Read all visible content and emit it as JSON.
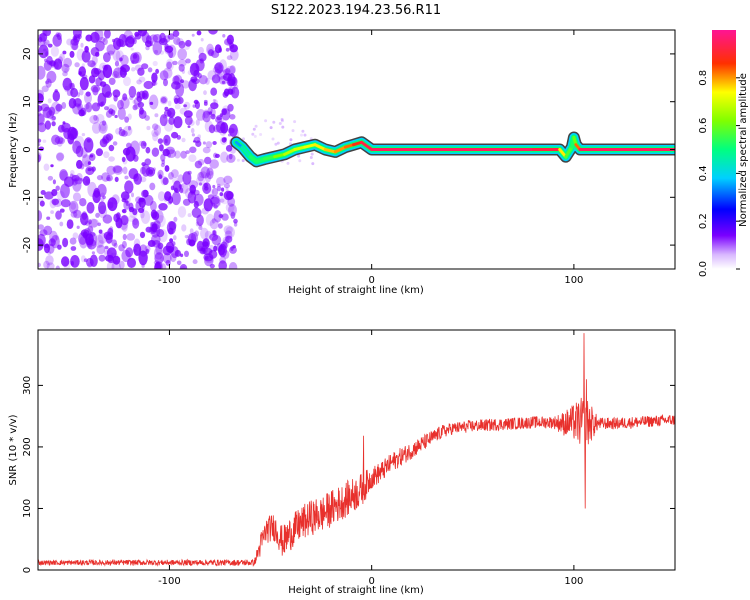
{
  "chart_data": [
    {
      "type": "heatmap",
      "title": "S122.2023.194.23.56.R11",
      "xlabel": "Height of straight line (km)",
      "ylabel": "Frequency (Hz)",
      "xlim": [
        -165,
        150
      ],
      "ylim": [
        -25,
        25
      ],
      "x_ticks": [
        -100,
        0,
        100
      ],
      "y_ticks": [
        -20,
        -10,
        0,
        10,
        20
      ],
      "colorbar": {
        "label": "Normalized spectral amplitude",
        "range": [
          0,
          1
        ],
        "ticks": [
          0.0,
          0.2,
          0.4,
          0.6,
          0.8
        ],
        "colormap": [
          "#ffffff",
          "#7a00ff",
          "#0000ff",
          "#00d0ff",
          "#00ff60",
          "#ffff00",
          "#ff0000",
          "#ff1493"
        ]
      },
      "noise_region_x": [
        -165,
        -67
      ],
      "noise_color": "#7a00ff",
      "ridge": {
        "x": [
          -67,
          -64,
          -60,
          -57,
          -53,
          -48,
          -43,
          -38,
          -33,
          -28,
          -23,
          -18,
          -13,
          -9,
          -5,
          0,
          10,
          20,
          40,
          60,
          80,
          93,
          96,
          99,
          100,
          101,
          103,
          110,
          130,
          150
        ],
        "y": [
          1.5,
          0.5,
          -1.5,
          -2.5,
          -2.0,
          -1.5,
          -1.0,
          0.0,
          0.5,
          1.0,
          0.0,
          -0.5,
          0.5,
          1.0,
          1.5,
          0.0,
          0.0,
          0.0,
          0.0,
          0.0,
          0.0,
          0.0,
          -1.5,
          0.5,
          2.5,
          1.0,
          0.0,
          0.0,
          0.0,
          0.0
        ],
        "amp": [
          0.3,
          0.4,
          0.5,
          0.55,
          0.5,
          0.6,
          0.65,
          0.7,
          0.7,
          0.75,
          0.75,
          0.8,
          0.8,
          0.85,
          0.9,
          0.95,
          0.95,
          0.95,
          0.95,
          0.95,
          0.95,
          0.9,
          0.6,
          0.55,
          0.5,
          0.7,
          0.95,
          0.95,
          0.95,
          0.95
        ]
      }
    },
    {
      "type": "line",
      "xlabel": "Height of straight line (km)",
      "ylabel": "SNR (10 * v/v)",
      "xlim": [
        -165,
        150
      ],
      "ylim": [
        0,
        390
      ],
      "x_ticks": [
        -100,
        0,
        100
      ],
      "y_ticks": [
        0,
        100,
        200,
        300
      ],
      "color": "#e8302c",
      "trend": {
        "x": [
          -165,
          -150,
          -120,
          -80,
          -58,
          -55,
          -52,
          -48,
          -44,
          -40,
          -35,
          -30,
          -25,
          -20,
          -15,
          -10,
          -5,
          0,
          5,
          10,
          15,
          20,
          25,
          30,
          35,
          40,
          50,
          60,
          70,
          80,
          90,
          95,
          100,
          105,
          110,
          120,
          130,
          140,
          150
        ],
        "y": [
          12,
          12,
          12,
          12,
          12,
          40,
          65,
          70,
          45,
          60,
          75,
          85,
          90,
          100,
          110,
          120,
          130,
          150,
          160,
          175,
          185,
          195,
          205,
          215,
          225,
          230,
          234,
          236,
          238,
          240,
          240,
          238,
          240,
          240,
          238,
          238,
          240,
          242,
          244
        ]
      },
      "noise": {
        "x": [
          -165,
          -58,
          -55,
          -40,
          -20,
          -5,
          0,
          20,
          40,
          90,
          100,
          103,
          107,
          112,
          150
        ],
        "y": [
          4,
          5,
          20,
          28,
          30,
          28,
          18,
          14,
          10,
          10,
          30,
          40,
          40,
          10,
          9
        ]
      },
      "spikes": [
        {
          "x": 105,
          "y": 385
        },
        {
          "x": 105.6,
          "y": 100
        },
        {
          "x": 106.2,
          "y": 310
        },
        {
          "x": 104.3,
          "y": 270
        },
        {
          "x": -4,
          "y": 218
        }
      ]
    }
  ]
}
